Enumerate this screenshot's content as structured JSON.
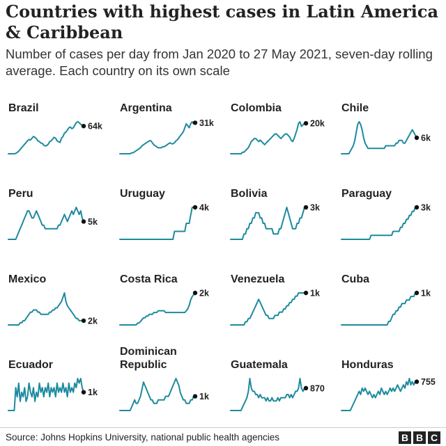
{
  "title": "Countries with highest cases in Latin America & Caribbean",
  "subtitle": "Number of cases per day from Jan 2020 to 27 May 2021, seven-day rolling average. Each country on its own scale",
  "source": "Source: Johns Hopkins University, national public health agencies",
  "logo": [
    "B",
    "B",
    "C"
  ],
  "colors": {
    "line": "#1d8a9e",
    "text": "#222222",
    "dot": "#111111",
    "axis": "#cccccc"
  },
  "chart_data": {
    "type": "line",
    "x_range": [
      "Jan 2020",
      "27 May 2021"
    ],
    "y_scale": "each country on its own scale",
    "series": [
      {
        "name": "Brazil",
        "latest_label": "64k",
        "latest_value": 64000,
        "values": [
          0,
          0,
          0,
          0,
          0,
          1,
          3,
          6,
          10,
          14,
          18,
          22,
          26,
          30,
          33,
          32,
          36,
          40,
          38,
          35,
          30,
          28,
          25,
          24,
          20,
          18,
          19,
          22,
          28,
          30,
          34,
          38,
          36,
          30,
          28,
          26,
          36,
          40,
          48,
          50,
          55,
          60,
          62,
          58,
          60,
          66,
          72,
          74,
          72,
          68,
          66,
          64
        ]
      },
      {
        "name": "Argentina",
        "latest_label": "31k",
        "latest_value": 31000,
        "values": [
          0,
          0,
          0,
          0,
          0,
          0,
          0,
          0,
          1,
          1,
          2,
          3,
          4,
          5,
          6,
          8,
          9,
          10,
          11,
          12,
          13,
          13,
          11,
          9,
          8,
          7,
          6,
          6,
          6,
          7,
          7,
          8,
          9,
          10,
          11,
          10,
          10,
          11,
          13,
          14,
          16,
          18,
          20,
          22,
          26,
          30,
          28,
          26,
          30,
          32,
          30,
          31
        ]
      },
      {
        "name": "Colombia",
        "latest_label": "20k",
        "latest_value": 20000,
        "values": [
          0,
          0,
          0,
          0,
          0,
          0,
          0,
          0,
          1,
          1,
          2,
          3,
          4,
          6,
          8,
          9,
          10,
          10,
          9,
          8,
          9,
          8,
          7,
          6,
          7,
          8,
          9,
          10,
          11,
          12,
          13,
          13,
          12,
          11,
          10,
          11,
          12,
          13,
          13,
          12,
          11,
          9,
          8,
          10,
          13,
          16,
          20,
          21,
          18,
          19,
          20,
          20
        ]
      },
      {
        "name": "Chile",
        "latest_label": "6k",
        "latest_value": 6000,
        "values": [
          0,
          0,
          0,
          0,
          0,
          0,
          1,
          2,
          3,
          5,
          8,
          11,
          12,
          11,
          9,
          6,
          4,
          3,
          2,
          2,
          2,
          2,
          2,
          2,
          2,
          2,
          2,
          2,
          2,
          2,
          3,
          3,
          3,
          3,
          3,
          3,
          3,
          4,
          4,
          5,
          5,
          5,
          4,
          4,
          5,
          6,
          7,
          8,
          9,
          8,
          7,
          6
        ]
      },
      {
        "name": "Peru",
        "latest_label": "5k",
        "latest_value": 5000,
        "values": [
          0,
          0,
          0,
          0,
          0,
          0,
          1,
          2,
          3,
          4,
          5,
          6,
          7,
          8,
          8,
          7,
          6,
          6,
          7,
          8,
          7,
          6,
          5,
          4,
          4,
          3,
          3,
          3,
          3,
          3,
          3,
          3,
          3,
          3,
          4,
          4,
          5,
          6,
          7,
          6,
          5,
          6,
          7,
          8,
          7,
          8,
          9,
          8,
          7,
          8,
          6,
          5
        ]
      },
      {
        "name": "Uruguay",
        "latest_label": "4k",
        "latest_value": 4000,
        "values": [
          0,
          0,
          0,
          0,
          0,
          0,
          0,
          0,
          0,
          0,
          0,
          0,
          0,
          0,
          0,
          0,
          0,
          0,
          0,
          0,
          0,
          0,
          0,
          0,
          0,
          0,
          0,
          0,
          0,
          0,
          0,
          0,
          0,
          0,
          0,
          0,
          0,
          1,
          1,
          1,
          1,
          1,
          1,
          1,
          1,
          2,
          2,
          2,
          3,
          4,
          4,
          4
        ]
      },
      {
        "name": "Bolivia",
        "latest_label": "3k",
        "latest_value": 3000,
        "values": [
          0,
          0,
          0,
          0,
          0,
          0,
          0,
          0,
          0,
          1,
          1,
          2,
          2,
          3,
          3,
          4,
          4,
          5,
          5,
          5,
          4,
          4,
          3,
          3,
          2,
          2,
          2,
          2,
          2,
          1,
          1,
          1,
          1,
          2,
          2,
          3,
          4,
          5,
          6,
          5,
          4,
          3,
          2,
          2,
          2,
          3,
          3,
          4,
          4,
          5,
          6,
          6
        ]
      },
      {
        "name": "Paraguay",
        "latest_label": "3k",
        "latest_value": 3000,
        "values": [
          0,
          0,
          0,
          0,
          0,
          0,
          0,
          0,
          0,
          0,
          0,
          0,
          0,
          0,
          0,
          0,
          0,
          0,
          0,
          0,
          1,
          1,
          1,
          1,
          1,
          1,
          1,
          1,
          1,
          1,
          1,
          1,
          1,
          1,
          1,
          2,
          2,
          2,
          2,
          2,
          3,
          3,
          4,
          4,
          5,
          5,
          6,
          6,
          7,
          7,
          8,
          8
        ]
      },
      {
        "name": "Mexico",
        "latest_label": "2k",
        "latest_value": 2000,
        "values": [
          0,
          0,
          0,
          0,
          0,
          0,
          0,
          0,
          1,
          1,
          2,
          2,
          3,
          4,
          5,
          6,
          6,
          7,
          7,
          7,
          6,
          6,
          5,
          5,
          5,
          5,
          5,
          5,
          6,
          6,
          7,
          7,
          8,
          8,
          9,
          10,
          11,
          13,
          15,
          11,
          9,
          8,
          7,
          6,
          5,
          4,
          3,
          3,
          2,
          2,
          2,
          2
        ]
      },
      {
        "name": "Costa Rica",
        "latest_label": "2k",
        "latest_value": 2000,
        "values": [
          0,
          0,
          0,
          0,
          0,
          0,
          0,
          0,
          0,
          0,
          0,
          0,
          1,
          1,
          2,
          3,
          4,
          4,
          5,
          5,
          6,
          6,
          6,
          7,
          7,
          7,
          8,
          8,
          8,
          8,
          8,
          7,
          7,
          7,
          7,
          7,
          7,
          7,
          7,
          7,
          7,
          7,
          7,
          7,
          7,
          8,
          9,
          11,
          14,
          16,
          17,
          18
        ]
      },
      {
        "name": "Venezuela",
        "latest_label": "1k",
        "latest_value": 1000,
        "values": [
          0,
          0,
          0,
          0,
          0,
          0,
          0,
          0,
          0,
          0,
          1,
          1,
          2,
          2,
          3,
          4,
          5,
          6,
          7,
          8,
          7,
          6,
          5,
          4,
          3,
          3,
          2,
          2,
          2,
          2,
          3,
          3,
          3,
          4,
          4,
          4,
          5,
          5,
          6,
          6,
          7,
          7,
          8,
          8,
          9,
          9,
          10,
          10,
          10,
          10,
          10,
          10
        ]
      },
      {
        "name": "Cuba",
        "latest_label": "1k",
        "latest_value": 1000,
        "values": [
          0,
          0,
          0,
          0,
          0,
          0,
          0,
          0,
          0,
          0,
          0,
          0,
          0,
          0,
          0,
          0,
          0,
          0,
          0,
          0,
          0,
          0,
          0,
          0,
          0,
          0,
          0,
          0,
          0,
          0,
          0,
          0,
          1,
          1,
          2,
          3,
          3,
          4,
          4,
          5,
          5,
          6,
          6,
          6,
          7,
          7,
          7,
          8,
          8,
          8,
          9,
          9
        ]
      },
      {
        "name": "Ecuador",
        "latest_label": "1k",
        "latest_value": 1000,
        "values": [
          0,
          0,
          0,
          0,
          0,
          5,
          3,
          6,
          2,
          4,
          3,
          5,
          2,
          3,
          6,
          4,
          3,
          5,
          2,
          4,
          3,
          6,
          4,
          5,
          3,
          5,
          4,
          6,
          3,
          5,
          4,
          5,
          3,
          6,
          4,
          5,
          4,
          6,
          4,
          5,
          3,
          6,
          4,
          5,
          4,
          6,
          5,
          7,
          6,
          7,
          5,
          4
        ]
      },
      {
        "name": "Dominican Republic",
        "latest_label": "1k",
        "latest_value": 1000,
        "values": [
          0,
          0,
          0,
          0,
          0,
          0,
          0,
          0,
          1,
          2,
          3,
          2,
          2,
          3,
          4,
          6,
          8,
          7,
          6,
          5,
          4,
          3,
          3,
          2,
          2,
          2,
          3,
          3,
          3,
          3,
          3,
          4,
          4,
          4,
          5,
          6,
          7,
          8,
          9,
          8,
          7,
          5,
          4,
          3,
          3,
          2,
          2,
          2,
          3,
          3,
          4,
          4
        ]
      },
      {
        "name": "Guatemala",
        "latest_label": "870",
        "latest_value": 870,
        "values": [
          0,
          0,
          0,
          0,
          0,
          0,
          0,
          0,
          1,
          2,
          3,
          4,
          6,
          10,
          7,
          6,
          6,
          5,
          5,
          4,
          5,
          4,
          4,
          4,
          3,
          4,
          3,
          3,
          4,
          3,
          3,
          3,
          4,
          3,
          4,
          4,
          4,
          4,
          5,
          5,
          4,
          5,
          4,
          5,
          6,
          6,
          7,
          10,
          7,
          6,
          7,
          7
        ]
      },
      {
        "name": "Honduras",
        "latest_label": "755",
        "latest_value": 755,
        "values": [
          0,
          0,
          0,
          0,
          0,
          0,
          0,
          1,
          2,
          3,
          4,
          5,
          6,
          5,
          7,
          6,
          7,
          6,
          5,
          6,
          5,
          4,
          5,
          4,
          5,
          6,
          5,
          7,
          6,
          5,
          6,
          5,
          6,
          7,
          6,
          7,
          6,
          7,
          8,
          7,
          6,
          7,
          8,
          7,
          9,
          8,
          10,
          8,
          9,
          8,
          9,
          9
        ]
      }
    ]
  }
}
